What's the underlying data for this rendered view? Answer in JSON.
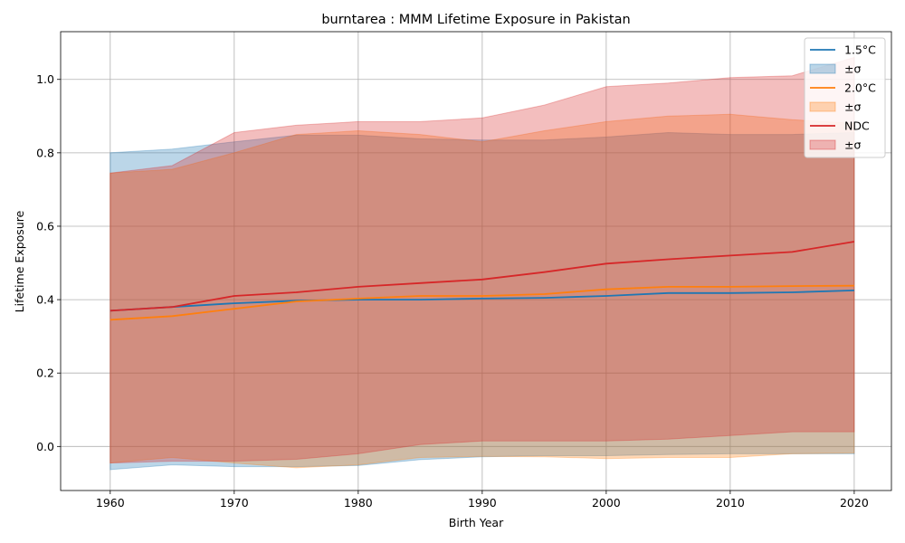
{
  "chart_data": {
    "type": "area",
    "title": "burntarea : MMM Lifetime Exposure in Pakistan",
    "xlabel": "Birth Year",
    "ylabel": "Lifetime Exposure",
    "xlim": [
      1956,
      2023
    ],
    "ylim": [
      -0.12,
      1.13
    ],
    "xticks": [
      1960,
      1970,
      1980,
      1990,
      2000,
      2010,
      2020
    ],
    "yticks": [
      0.0,
      0.2,
      0.4,
      0.6,
      0.8,
      1.0
    ],
    "ytick_labels": [
      "0.0",
      "0.2",
      "0.4",
      "0.6",
      "0.8",
      "1.0"
    ],
    "grid": true,
    "legend_placement": "top-right",
    "x": [
      1960,
      1965,
      1970,
      1975,
      1980,
      1985,
      1990,
      1995,
      2000,
      2005,
      2010,
      2015,
      2020
    ],
    "series": [
      {
        "name": "1.5°C",
        "band_label": "±σ",
        "color": "#1f77b4",
        "band_color": "#1f77b4",
        "mean": [
          0.37,
          0.38,
          0.39,
          0.397,
          0.4,
          0.4,
          0.403,
          0.405,
          0.41,
          0.418,
          0.418,
          0.42,
          0.425
        ],
        "upper": [
          0.8,
          0.81,
          0.83,
          0.848,
          0.848,
          0.838,
          0.835,
          0.835,
          0.843,
          0.855,
          0.85,
          0.85,
          0.855
        ],
        "lower": [
          -0.063,
          -0.05,
          -0.055,
          -0.055,
          -0.052,
          -0.036,
          -0.028,
          -0.025,
          -0.025,
          -0.022,
          -0.02,
          -0.02,
          -0.02
        ]
      },
      {
        "name": "2.0°C",
        "band_label": "±σ",
        "color": "#ff7f0e",
        "band_color": "#ff7f0e",
        "mean": [
          0.345,
          0.355,
          0.375,
          0.395,
          0.403,
          0.41,
          0.41,
          0.415,
          0.428,
          0.435,
          0.435,
          0.437,
          0.438
        ],
        "upper": [
          0.745,
          0.755,
          0.8,
          0.85,
          0.86,
          0.85,
          0.83,
          0.86,
          0.885,
          0.9,
          0.905,
          0.89,
          0.88
        ],
        "lower": [
          -0.045,
          -0.03,
          -0.045,
          -0.058,
          -0.05,
          -0.03,
          -0.027,
          -0.028,
          -0.033,
          -0.03,
          -0.03,
          -0.02,
          -0.018
        ]
      },
      {
        "name": "NDC",
        "band_label": "±σ",
        "color": "#d62728",
        "band_color": "#d62728",
        "mean": [
          0.37,
          0.38,
          0.41,
          0.42,
          0.435,
          0.445,
          0.455,
          0.475,
          0.498,
          0.51,
          0.52,
          0.53,
          0.558
        ],
        "upper": [
          0.745,
          0.765,
          0.855,
          0.875,
          0.885,
          0.885,
          0.895,
          0.93,
          0.98,
          0.99,
          1.005,
          1.01,
          1.06
        ],
        "lower": [
          -0.045,
          -0.04,
          -0.04,
          -0.035,
          -0.02,
          0.005,
          0.015,
          0.015,
          0.015,
          0.02,
          0.03,
          0.04,
          0.04
        ]
      }
    ]
  }
}
